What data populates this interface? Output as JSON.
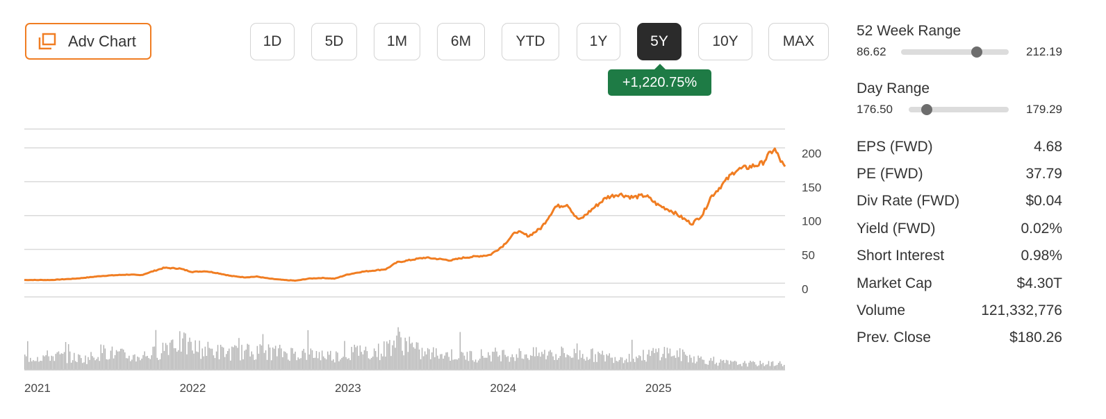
{
  "toolbar": {
    "adv_chart_label": "Adv Chart",
    "ranges": [
      "1D",
      "5D",
      "1M",
      "6M",
      "YTD",
      "1Y",
      "5Y",
      "10Y",
      "MAX"
    ],
    "active_range": "5Y",
    "change_text": "+1,220.75%",
    "change_color": "#1e7b45",
    "active_color": "#2b2b2b",
    "accent_color": "#f07d22"
  },
  "week52": {
    "label": "52 Week Range",
    "low": "86.62",
    "high": "212.19",
    "position": 0.7
  },
  "day_range": {
    "label": "Day Range",
    "low": "176.50",
    "high": "179.29",
    "position": 0.18
  },
  "stats": [
    {
      "label": "EPS (FWD)",
      "value": "4.68"
    },
    {
      "label": "PE (FWD)",
      "value": "37.79"
    },
    {
      "label": "Div Rate (FWD)",
      "value": "$0.04"
    },
    {
      "label": "Yield (FWD)",
      "value": "0.02%"
    },
    {
      "label": "Short Interest",
      "value": "0.98%"
    },
    {
      "label": "Market Cap",
      "value": "$4.30T"
    },
    {
      "label": "Volume",
      "value": "121,332,776"
    },
    {
      "label": "Prev. Close",
      "value": "$180.26"
    }
  ],
  "chart_data": {
    "type": "line",
    "line_color": "#f07d22",
    "volume_color": "#b3b3b3",
    "ylim": [
      -12,
      236
    ],
    "yticks": [
      0,
      50,
      100,
      150,
      200
    ],
    "xticks": [
      {
        "label": "2021",
        "t": 2021.0
      },
      {
        "label": "2022",
        "t": 2022.0
      },
      {
        "label": "2023",
        "t": 2023.0
      },
      {
        "label": "2024",
        "t": 2024.0
      },
      {
        "label": "2025",
        "t": 2025.0
      }
    ],
    "x_start": 2021.0,
    "x_end": 2025.9,
    "series": [
      {
        "points": [
          [
            2021.0,
            13
          ],
          [
            2021.08,
            13
          ],
          [
            2021.17,
            13
          ],
          [
            2021.25,
            14
          ],
          [
            2021.33,
            15
          ],
          [
            2021.42,
            17
          ],
          [
            2021.5,
            19
          ],
          [
            2021.58,
            20
          ],
          [
            2021.67,
            21
          ],
          [
            2021.75,
            20
          ],
          [
            2021.83,
            26
          ],
          [
            2021.9,
            31
          ],
          [
            2022.0,
            30
          ],
          [
            2022.08,
            25
          ],
          [
            2022.17,
            26
          ],
          [
            2022.25,
            23
          ],
          [
            2022.33,
            19
          ],
          [
            2022.42,
            17
          ],
          [
            2022.5,
            18
          ],
          [
            2022.58,
            15
          ],
          [
            2022.67,
            13
          ],
          [
            2022.75,
            12
          ],
          [
            2022.83,
            15
          ],
          [
            2022.92,
            16
          ],
          [
            2023.0,
            15
          ],
          [
            2023.08,
            21
          ],
          [
            2023.17,
            25
          ],
          [
            2023.25,
            27
          ],
          [
            2023.33,
            29
          ],
          [
            2023.4,
            39
          ],
          [
            2023.5,
            43
          ],
          [
            2023.58,
            46
          ],
          [
            2023.67,
            44
          ],
          [
            2023.75,
            42
          ],
          [
            2023.83,
            46
          ],
          [
            2023.92,
            48
          ],
          [
            2024.0,
            50
          ],
          [
            2024.08,
            63
          ],
          [
            2024.17,
            85
          ],
          [
            2024.25,
            78
          ],
          [
            2024.33,
            90
          ],
          [
            2024.42,
            121
          ],
          [
            2024.5,
            125
          ],
          [
            2024.55,
            106
          ],
          [
            2024.58,
            102
          ],
          [
            2024.67,
            120
          ],
          [
            2024.75,
            135
          ],
          [
            2024.83,
            140
          ],
          [
            2024.92,
            135
          ],
          [
            2025.0,
            138
          ],
          [
            2025.08,
            124
          ],
          [
            2025.17,
            115
          ],
          [
            2025.25,
            103
          ],
          [
            2025.3,
            96
          ],
          [
            2025.37,
            110
          ],
          [
            2025.42,
            135
          ],
          [
            2025.5,
            155
          ],
          [
            2025.58,
            175
          ],
          [
            2025.67,
            180
          ],
          [
            2025.75,
            185
          ],
          [
            2025.83,
            207
          ],
          [
            2025.87,
            190
          ],
          [
            2025.9,
            178
          ]
        ]
      }
    ],
    "volume": [
      [
        2021.0,
        0.4
      ],
      [
        2021.2,
        0.45
      ],
      [
        2021.4,
        0.35
      ],
      [
        2021.5,
        0.6
      ],
      [
        2021.7,
        0.4
      ],
      [
        2021.85,
        0.55
      ],
      [
        2021.95,
        0.95
      ],
      [
        2022.1,
        0.7
      ],
      [
        2022.3,
        0.55
      ],
      [
        2022.5,
        0.6
      ],
      [
        2022.7,
        0.55
      ],
      [
        2022.9,
        0.5
      ],
      [
        2023.0,
        0.45
      ],
      [
        2023.15,
        0.6
      ],
      [
        2023.3,
        0.6
      ],
      [
        2023.4,
        1.0
      ],
      [
        2023.55,
        0.55
      ],
      [
        2023.7,
        0.5
      ],
      [
        2023.9,
        0.45
      ],
      [
        2024.0,
        0.5
      ],
      [
        2024.2,
        0.5
      ],
      [
        2024.4,
        0.5
      ],
      [
        2024.6,
        0.5
      ],
      [
        2024.8,
        0.4
      ],
      [
        2025.0,
        0.45
      ],
      [
        2025.1,
        0.6
      ],
      [
        2025.25,
        0.45
      ],
      [
        2025.45,
        0.25
      ],
      [
        2025.6,
        0.2
      ],
      [
        2025.75,
        0.2
      ],
      [
        2025.9,
        0.2
      ]
    ]
  }
}
